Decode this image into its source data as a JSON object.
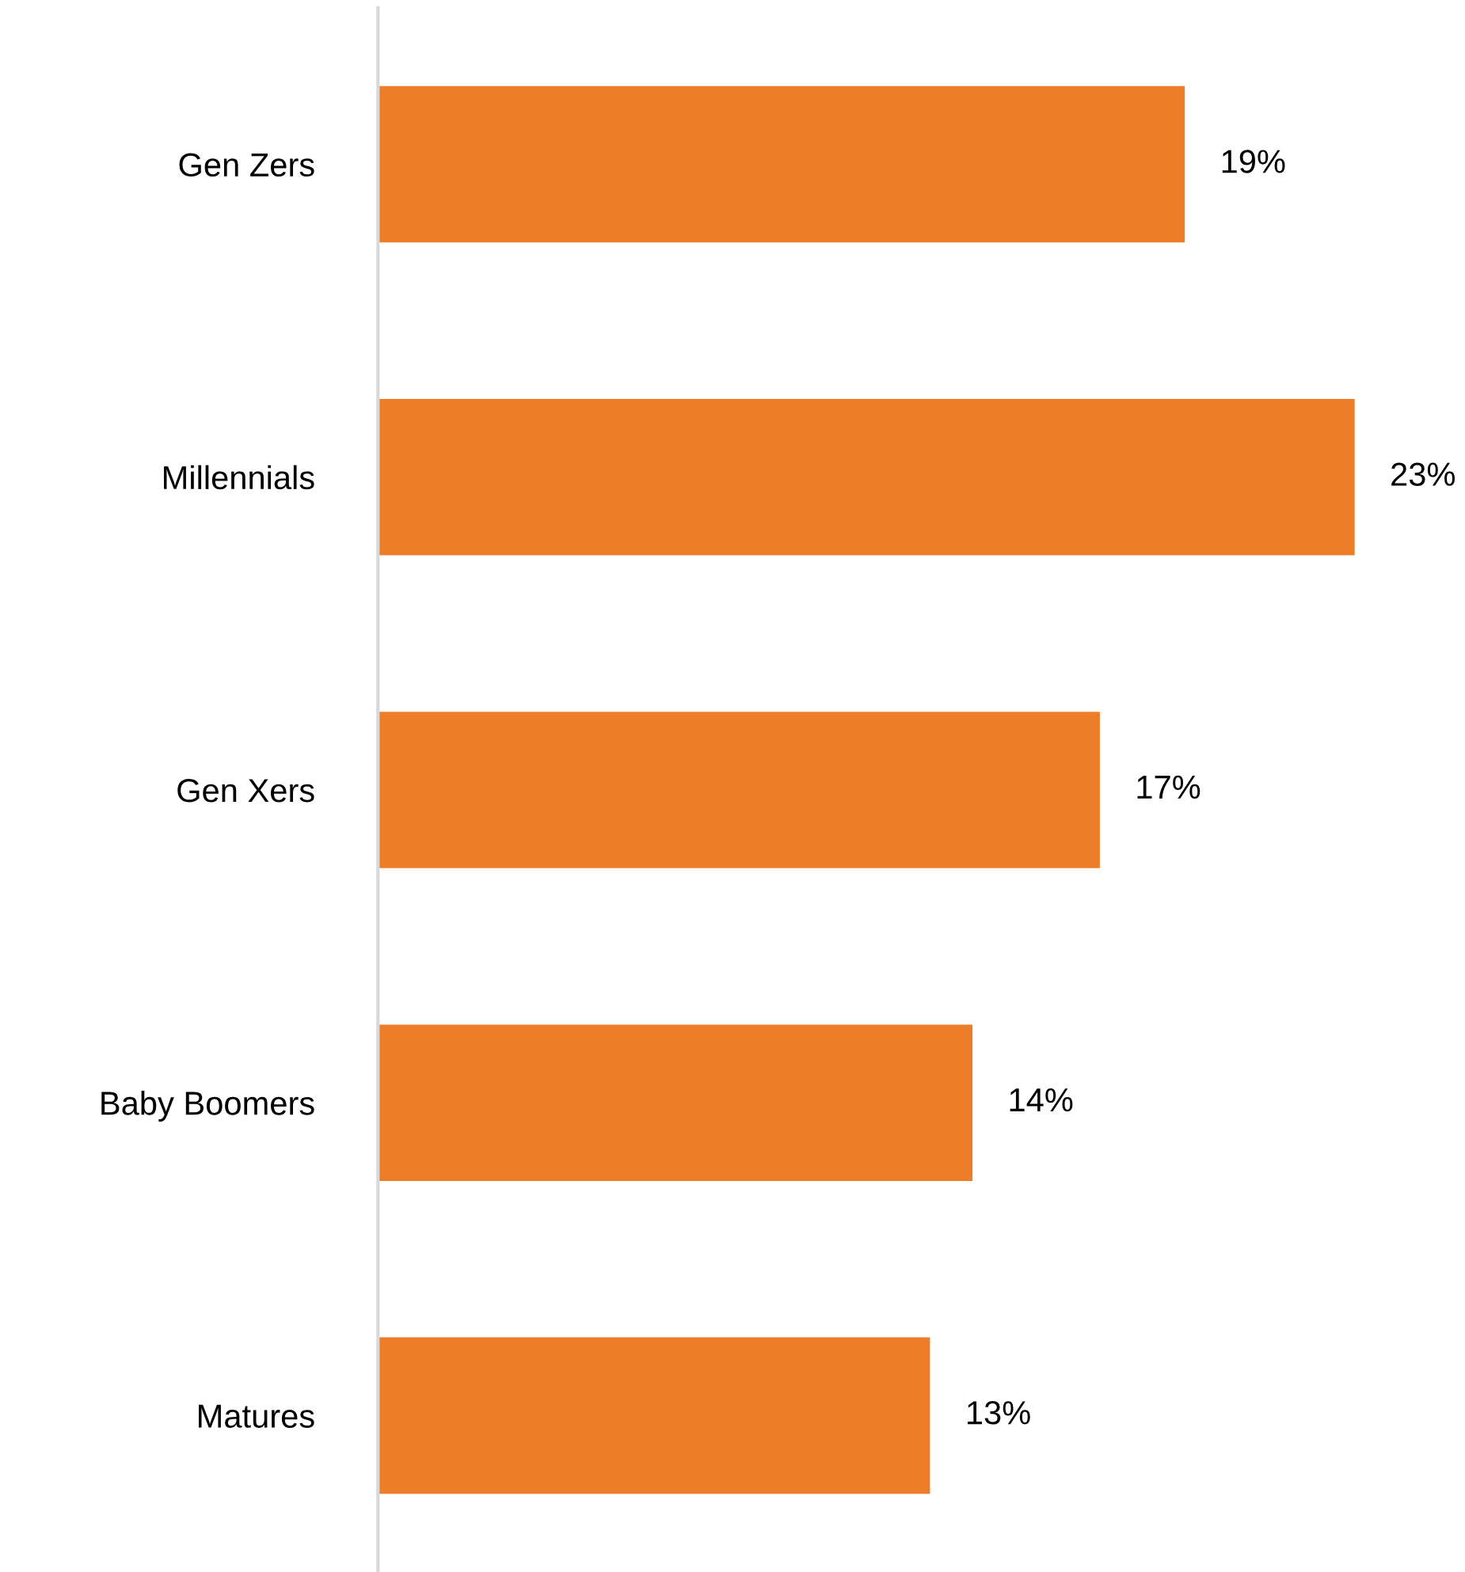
{
  "chart_data": {
    "type": "bar",
    "orientation": "horizontal",
    "categories": [
      "Gen Zers",
      "Millennials",
      "Gen Xers",
      "Baby Boomers",
      "Matures"
    ],
    "values": [
      19,
      23,
      17,
      14,
      13
    ],
    "value_labels": [
      "19%",
      "23%",
      "17%",
      "14%",
      "13%"
    ],
    "color": "#ed7d29",
    "grid": false,
    "legend": false,
    "tick_labels": "y"
  }
}
